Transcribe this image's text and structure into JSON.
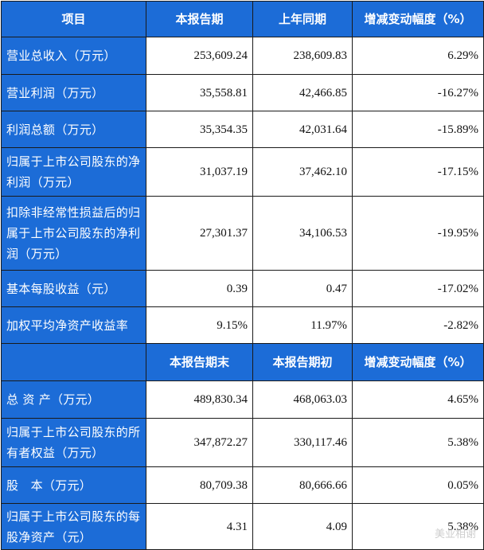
{
  "header1": {
    "col1": "项目",
    "col2": "本报告期",
    "col3": "上年同期",
    "col4": "增减变动幅度（%）"
  },
  "rows1": [
    {
      "label": "营业总收入（万元）",
      "current": "253,609.24",
      "prior": "238,609.83",
      "change": "6.29%"
    },
    {
      "label": "营业利润（万元）",
      "current": "35,558.81",
      "prior": "42,466.85",
      "change": "-16.27%"
    },
    {
      "label": "利润总额（万元）",
      "current": "35,354.35",
      "prior": "42,031.64",
      "change": "-15.89%"
    },
    {
      "label": "归属于上市公司股东的净利润（万元）",
      "current": "31,037.19",
      "prior": "37,462.10",
      "change": "-17.15%"
    },
    {
      "label": "扣除非经常性损益后的归属于上市公司股东的净利润（万元）",
      "current": "27,301.37",
      "prior": "34,106.53",
      "change": "-19.95%"
    },
    {
      "label": "基本每股收益（元）",
      "current": "0.39",
      "prior": "0.47",
      "change": "-17.02%"
    },
    {
      "label": "加权平均净资产收益率",
      "current": "9.15%",
      "prior": "11.97%",
      "change": "-2.82%"
    }
  ],
  "header2": {
    "col1": "",
    "col2": "本报告期末",
    "col3": "本报告期初",
    "col4": "增减变动幅度（%）"
  },
  "rows2": [
    {
      "label": "总 资 产（万元）",
      "current": "489,830.34",
      "prior": "468,063.03",
      "change": "4.65%"
    },
    {
      "label": "归属于上市公司股东的所有者权益（万元）",
      "current": "347,872.27",
      "prior": "330,117.46",
      "change": "5.38%"
    },
    {
      "label": "股　本（万元）",
      "current": "80,709.38",
      "prior": "80,666.66",
      "change": "0.05%"
    },
    {
      "label": "归属于上市公司股东的每股净资产（元）",
      "current": "4.31",
      "prior": "4.09",
      "change": "5.38%"
    }
  ],
  "colors": {
    "header_bg": "#1c6cd7",
    "positive_change": "#e8201c",
    "text": "#111111"
  },
  "watermark": "美业相谢"
}
